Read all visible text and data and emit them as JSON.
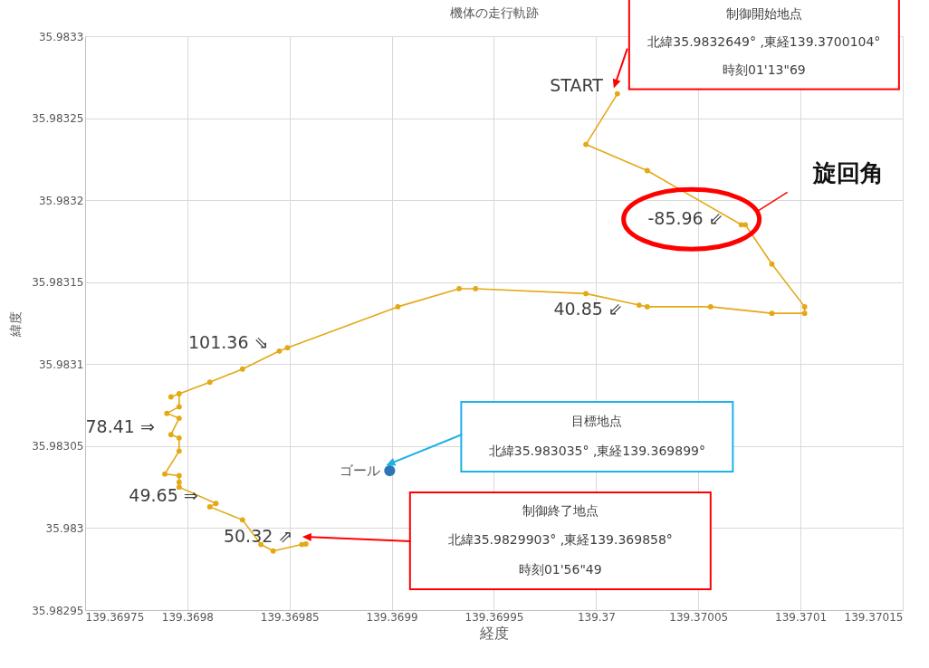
{
  "chart_data": {
    "type": "line",
    "title": "機体の走行軌跡",
    "xlabel": "経度",
    "ylabel": "緯度",
    "xlim": [
      139.36975,
      139.37015
    ],
    "xticks": [
      139.36975,
      139.3698,
      139.36985,
      139.3699,
      139.36995,
      139.37,
      139.37005,
      139.3701,
      139.37015
    ],
    "ylim": [
      35.98295,
      35.9833
    ],
    "yticks": [
      35.98295,
      35.983,
      35.98305,
      35.9831,
      35.98315,
      35.9832,
      35.98325,
      35.9833
    ],
    "grid": true,
    "marker": "circle",
    "series": [
      {
        "color": "#e3a915",
        "x": [
          139.3700104,
          139.369995,
          139.370025,
          139.370071,
          139.370073,
          139.370086,
          139.370102,
          139.370102,
          139.370086,
          139.370056,
          139.370025,
          139.370021,
          139.369995,
          139.369941,
          139.369933,
          139.369903,
          139.369849,
          139.369845,
          139.369827,
          139.369811,
          139.369792,
          139.369796,
          139.369796,
          139.36979,
          139.369796,
          139.369792,
          139.369796,
          139.369796,
          139.369789,
          139.369796,
          139.369796,
          139.369796,
          139.369814,
          139.369811,
          139.369827,
          139.369836,
          139.369842,
          139.369856,
          139.369858
        ],
        "values": [
          35.9832649,
          35.983234,
          35.983218,
          35.983185,
          35.983185,
          35.983161,
          35.983135,
          35.983131,
          35.983131,
          35.983135,
          35.983135,
          35.983136,
          35.983143,
          35.983146,
          35.983146,
          35.983135,
          35.98311,
          35.983108,
          35.983097,
          35.983089,
          35.98308,
          35.983082,
          35.983074,
          35.98307,
          35.983067,
          35.983057,
          35.983055,
          35.983047,
          35.983033,
          35.983032,
          35.983028,
          35.983025,
          35.983015,
          35.983013,
          35.983005,
          35.98299,
          35.982986,
          35.98299,
          35.9829903
        ]
      },
      {
        "type": "scatter",
        "name": "ゴール",
        "color": "#2e75b6",
        "x": [
          139.369899
        ],
        "values": [
          35.983035
        ]
      }
    ],
    "annotations": [
      {
        "text": "START",
        "x": 139.3700104,
        "y": 35.9832649
      },
      {
        "text": "-85.96 ⇙",
        "x": 139.370071,
        "y": 35.983185
      },
      {
        "text": "40.85 ⇙",
        "x": 139.370021,
        "y": 35.983136
      },
      {
        "text": "101.36 ⇘",
        "x": 139.369845,
        "y": 35.983108
      },
      {
        "text": "78.41 ⇒",
        "x": 139.369792,
        "y": 35.983057
      },
      {
        "text": "49.65 ⇒",
        "x": 139.369811,
        "y": 35.983013
      },
      {
        "text": "50.32 ⇗",
        "x": 139.369856,
        "y": 35.98299
      },
      "制御開始地点",
      "北緯35.9832649° ,東経139.3700104°",
      "時刻01'13\"69",
      "目標地点",
      "北緯35.983035° ,東経139.369899°",
      "制御終了地点",
      "北緯35.9829903° ,東経139.369858°",
      "時刻01'56\"49",
      "旋回角"
    ]
  }
}
